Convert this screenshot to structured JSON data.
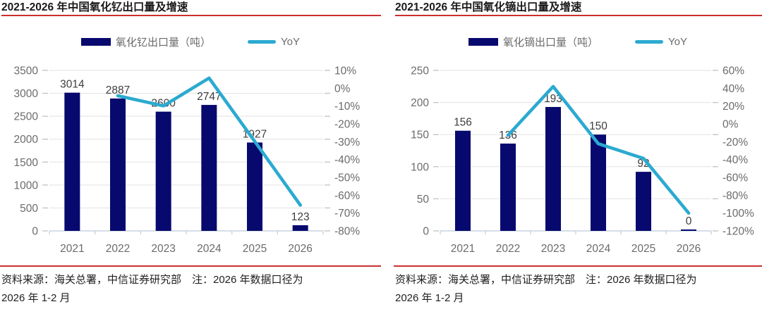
{
  "colors": {
    "bar": "#07096e",
    "line": "#2baad0",
    "accent_red": "#cb2f2f",
    "gridline": "#e2e2e2",
    "axis_line": "#c9d3df",
    "axis_text": "#6b6b6b",
    "data_label": "#3d3d3d"
  },
  "chart_data": [
    {
      "type": "bar",
      "combo": "bar+line",
      "title": "2021-2026 年中国氧化钇出口量及增速",
      "categories": [
        "2021",
        "2022",
        "2023",
        "2024",
        "2025",
        "2026"
      ],
      "series": [
        {
          "name": "氧化钇出口量（吨）",
          "type": "bar",
          "axis": "left",
          "values": [
            3014,
            2887,
            2600,
            2747,
            1927,
            123
          ],
          "data_labels": [
            "3014",
            "2887",
            "2600",
            "2747",
            "1927",
            "123"
          ]
        },
        {
          "name": "YoY",
          "type": "line",
          "axis": "right",
          "values": [
            null,
            -4.2,
            -9.9,
            5.7,
            -29.8,
            -65.6
          ]
        }
      ],
      "left_axis": {
        "min": 0,
        "max": 3500,
        "step": 500,
        "ticks": [
          "3500",
          "3000",
          "2500",
          "2000",
          "1500",
          "1000",
          "500",
          "0"
        ]
      },
      "right_axis": {
        "min": -80,
        "max": 10,
        "step": 10,
        "ticks": [
          "10%",
          "0%",
          "-10%",
          "-20%",
          "-30%",
          "-40%",
          "-50%",
          "-60%",
          "-70%",
          "-80%"
        ]
      },
      "legend_position": "top",
      "grid": "horizontal",
      "source_note_line1": "资料来源：海关总署，中信证券研究部　注：2026 年数据口径为",
      "source_note_line2": "2026 年 1-2 月"
    },
    {
      "type": "bar",
      "combo": "bar+line",
      "title": "2021-2026 年中国氧化镝出口量及增速",
      "categories": [
        "2021",
        "2022",
        "2023",
        "2024",
        "2025",
        "2026"
      ],
      "series": [
        {
          "name": "氧化镝出口量（吨）",
          "type": "bar",
          "axis": "left",
          "values": [
            156,
            136,
            193,
            150,
            92,
            0
          ],
          "data_labels": [
            "156",
            "136",
            "193",
            "150",
            "92",
            "0"
          ]
        },
        {
          "name": "YoY",
          "type": "line",
          "axis": "right",
          "values": [
            null,
            -12.8,
            41.9,
            -22.3,
            -38.7,
            -100
          ]
        }
      ],
      "left_axis": {
        "min": 0,
        "max": 250,
        "step": 50,
        "ticks": [
          "250",
          "200",
          "150",
          "100",
          "50",
          "0"
        ]
      },
      "right_axis": {
        "min": -120,
        "max": 60,
        "step": 20,
        "ticks": [
          "60%",
          "40%",
          "20%",
          "0%",
          "-20%",
          "-40%",
          "-60%",
          "-80%",
          "-100%",
          "-120%"
        ]
      },
      "legend_position": "top",
      "grid": "horizontal",
      "source_note_line1": "资料来源：海关总署，中信证券研究部　注：2026 年数据口径为",
      "source_note_line2": "2026 年 1-2 月"
    }
  ]
}
